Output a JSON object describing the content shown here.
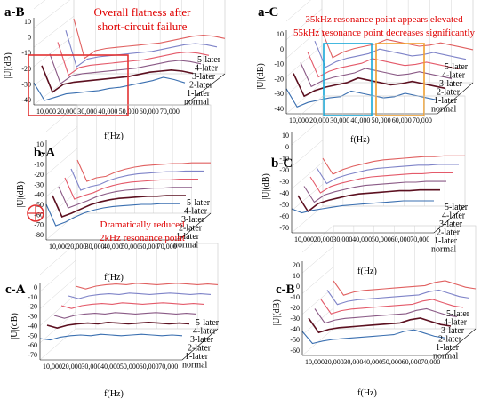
{
  "colors": {
    "normal": "#3a6fb0",
    "1-later": "#5c1020",
    "2-later": "#8a5a86",
    "3-later": "#e45a6a",
    "4-later": "#7e83c8",
    "5-later": "#e06060",
    "grid": "#c8c8c8",
    "highlight_red": "#e23232",
    "highlight_cyan": "#17a8d8",
    "highlight_orange": "#f0a030"
  },
  "chart_data": [
    {
      "id": "a-B",
      "type": "line",
      "label": "a-B",
      "ylabel": "|U|(dB)",
      "xlabel": "f(Hz)",
      "xticks": [
        "10,000",
        "20,000",
        "30,000",
        "40,000",
        "50,000",
        "60,000",
        "70,000"
      ],
      "yticks": [
        "10",
        "0",
        "-10",
        "-20",
        "-30",
        "-40"
      ],
      "ylim": [
        -40,
        10
      ],
      "xlim": [
        0,
        75000
      ],
      "series": [
        {
          "name": "normal",
          "values": [
            -20,
            -36,
            -33,
            -30,
            -29,
            -28,
            -27,
            -25,
            -24,
            -22,
            -20,
            -18,
            -15,
            -17,
            -20
          ]
        },
        {
          "name": "1-later",
          "values": [
            -10,
            -34,
            -27,
            -25,
            -24,
            -23,
            -22,
            -21,
            -20,
            -18,
            -16,
            -15,
            -14,
            -15,
            -17
          ]
        },
        {
          "name": "2-later",
          "values": [
            -5,
            -32,
            -25,
            -23,
            -22,
            -21,
            -20,
            -19,
            -18,
            -16,
            -14,
            -12,
            -11,
            -12,
            -14
          ]
        },
        {
          "name": "3-later",
          "values": [
            0,
            -30,
            -23,
            -21,
            -20,
            -19,
            -18,
            -17,
            -16,
            -14,
            -12,
            -10,
            -9,
            -10,
            -12
          ]
        },
        {
          "name": "4-later",
          "values": [
            5,
            -28,
            -21,
            -19,
            -18,
            -17,
            -16,
            -15,
            -14,
            -12,
            -10,
            -8,
            -7,
            -8,
            -10
          ]
        },
        {
          "name": "5-later",
          "values": [
            10,
            -26,
            -19,
            -17,
            -16,
            -15,
            -14,
            -13,
            -12,
            -10,
            -8,
            -6,
            -5,
            -6,
            -8
          ]
        }
      ],
      "annotations": [
        "Overall flatness after",
        "short-circuit failure"
      ]
    },
    {
      "id": "a-C",
      "type": "line",
      "label": "a-C",
      "ylabel": "|U|(dB)",
      "xlabel": "f(Hz)",
      "xticks": [
        "10,000",
        "20,000",
        "30,000",
        "40,000",
        "50,000",
        "60,000",
        "70,000"
      ],
      "yticks": [
        "10",
        "0",
        "-10",
        "-20",
        "-30",
        "-40"
      ],
      "ylim": [
        -40,
        10
      ],
      "xlim": [
        0,
        75000
      ],
      "series": [
        {
          "name": "normal",
          "values": [
            -18,
            -34,
            -30,
            -28,
            -26,
            -25,
            -20,
            -22,
            -24,
            -26,
            -25,
            -22,
            -24,
            -26,
            -28
          ]
        },
        {
          "name": "1-later",
          "values": [
            -10,
            -30,
            -25,
            -22,
            -20,
            -18,
            -14,
            -16,
            -18,
            -20,
            -19,
            -17,
            -19,
            -21,
            -23
          ]
        },
        {
          "name": "2-later",
          "values": [
            -6,
            -27,
            -22,
            -19,
            -17,
            -15,
            -11,
            -13,
            -15,
            -17,
            -16,
            -14,
            -16,
            -18,
            -20
          ]
        },
        {
          "name": "3-later",
          "values": [
            -2,
            -24,
            -19,
            -16,
            -14,
            -12,
            -8,
            -10,
            -12,
            -14,
            -13,
            -11,
            -13,
            -15,
            -17
          ]
        },
        {
          "name": "4-later",
          "values": [
            2,
            -21,
            -16,
            -13,
            -11,
            -9,
            -5,
            -7,
            -9,
            -11,
            -10,
            -8,
            -10,
            -12,
            -14
          ]
        },
        {
          "name": "5-later",
          "values": [
            6,
            -18,
            -13,
            -10,
            -8,
            -6,
            -2,
            -4,
            -6,
            -8,
            -7,
            -5,
            -7,
            -9,
            -11
          ]
        }
      ],
      "annotations": [
        "35kHz resonance point appears elevated",
        "55kHz resonance point decreases significantly"
      ]
    },
    {
      "id": "b-A",
      "type": "line",
      "label": "b-A",
      "ylabel": "|U|(dB)",
      "xlabel": "f(Hz)",
      "xticks": [
        "10,000",
        "20,000",
        "30,000",
        "40,000",
        "50,000",
        "60,000",
        "70,000"
      ],
      "yticks": [
        "10",
        "0",
        "-10",
        "-20",
        "-30",
        "-40",
        "-50",
        "-60",
        "-70",
        "-80"
      ],
      "ylim": [
        -80,
        10
      ],
      "xlim": [
        0,
        75000
      ],
      "series": [
        {
          "name": "normal",
          "values": [
            -30,
            -60,
            -55,
            -48,
            -42,
            -38,
            -35,
            -33,
            -32,
            -31,
            -30,
            -30,
            -29,
            -29,
            -29
          ]
        },
        {
          "name": "1-later",
          "values": [
            -25,
            -55,
            -50,
            -44,
            -38,
            -34,
            -31,
            -29,
            -28,
            -27,
            -26,
            -26,
            -25,
            -25,
            -25
          ]
        },
        {
          "name": "2-later",
          "values": [
            -20,
            -50,
            -45,
            -40,
            -34,
            -30,
            -27,
            -25,
            -24,
            -23,
            -22,
            -22,
            -21,
            -21,
            -21
          ]
        },
        {
          "name": "3-later",
          "values": [
            -15,
            -45,
            -40,
            -36,
            -30,
            -26,
            -23,
            -21,
            -20,
            -19,
            -18,
            -18,
            -17,
            -17,
            -17
          ]
        },
        {
          "name": "4-later",
          "values": [
            -10,
            -40,
            -35,
            -32,
            -26,
            -22,
            -19,
            -17,
            -16,
            -15,
            -14,
            -14,
            -13,
            -13,
            -13
          ]
        },
        {
          "name": "5-later",
          "values": [
            -5,
            -35,
            -30,
            -28,
            -22,
            -18,
            -15,
            -13,
            -12,
            -11,
            -10,
            -10,
            -9,
            -9,
            -9
          ]
        }
      ],
      "annotations": [
        "Dramatically reduced",
        "2kHz resonance point"
      ]
    },
    {
      "id": "b-C",
      "type": "line",
      "label": "b-C",
      "ylabel": "|U|(dB)",
      "xlabel": "f(Hz)",
      "xticks": [
        "10,000",
        "20,000",
        "30,000",
        "40,000",
        "50,000",
        "60,000",
        "70,000"
      ],
      "yticks": [
        "10",
        "0",
        "-10",
        "-20",
        "-30",
        "-40",
        "-50",
        "-60",
        "-70"
      ],
      "ylim": [
        -70,
        10
      ],
      "xlim": [
        0,
        75000
      ],
      "series": [
        {
          "name": "normal",
          "values": [
            -40,
            -45,
            -42,
            -40,
            -38,
            -36,
            -35,
            -34,
            -33,
            -32,
            -31,
            -30,
            -30,
            -30,
            -30
          ]
        },
        {
          "name": "1-later",
          "values": [
            -30,
            -50,
            -40,
            -36,
            -33,
            -30,
            -28,
            -27,
            -26,
            -25,
            -24,
            -24,
            -23,
            -23,
            -23
          ]
        },
        {
          "name": "2-later",
          "values": [
            -25,
            -45,
            -36,
            -32,
            -29,
            -26,
            -24,
            -23,
            -22,
            -21,
            -20,
            -20,
            -19,
            -19,
            -19
          ]
        },
        {
          "name": "3-later",
          "values": [
            -20,
            -40,
            -32,
            -28,
            -25,
            -22,
            -20,
            -19,
            -18,
            -17,
            -16,
            -16,
            -15,
            -15,
            -15
          ]
        },
        {
          "name": "4-later",
          "values": [
            -15,
            -35,
            -28,
            -24,
            -21,
            -18,
            -16,
            -15,
            -14,
            -13,
            -12,
            -12,
            -11,
            -11,
            -11
          ]
        },
        {
          "name": "5-later",
          "values": [
            -10,
            -30,
            -24,
            -20,
            -17,
            -14,
            -12,
            -11,
            -10,
            -9,
            -8,
            -8,
            -7,
            -7,
            -7
          ]
        }
      ]
    },
    {
      "id": "c-A",
      "type": "line",
      "label": "c-A",
      "ylabel": "|U|(dB)",
      "xlabel": "f(Hz)",
      "xticks": [
        "10,000",
        "20,000",
        "30,000",
        "40,000",
        "50,000",
        "60,000",
        "70,000"
      ],
      "yticks": [
        "0",
        "-10",
        "-20",
        "-30",
        "-40",
        "-50",
        "-60",
        "-70"
      ],
      "ylim": [
        -70,
        0
      ],
      "xlim": [
        0,
        75000
      ],
      "series": [
        {
          "name": "normal",
          "values": [
            -40,
            -42,
            -38,
            -36,
            -35,
            -36,
            -34,
            -35,
            -36,
            -35,
            -34,
            -35,
            -36,
            -35,
            -36
          ]
        },
        {
          "name": "1-later",
          "values": [
            -30,
            -34,
            -30,
            -28,
            -27,
            -28,
            -26,
            -27,
            -28,
            -27,
            -26,
            -27,
            -28,
            -27,
            -28
          ]
        },
        {
          "name": "2-later",
          "values": [
            -25,
            -29,
            -25,
            -23,
            -22,
            -23,
            -21,
            -22,
            -23,
            -22,
            -21,
            -22,
            -23,
            -22,
            -23
          ]
        },
        {
          "name": "3-later",
          "values": [
            -20,
            -24,
            -20,
            -18,
            -17,
            -18,
            -16,
            -17,
            -18,
            -17,
            -16,
            -17,
            -18,
            -17,
            -18
          ]
        },
        {
          "name": "4-later",
          "values": [
            -15,
            -19,
            -15,
            -13,
            -12,
            -13,
            -11,
            -12,
            -13,
            -12,
            -11,
            -12,
            -13,
            -12,
            -13
          ]
        },
        {
          "name": "5-later",
          "values": [
            -10,
            -14,
            -10,
            -8,
            -7,
            -8,
            -6,
            -7,
            -8,
            -7,
            -6,
            -7,
            -8,
            -7,
            -8
          ]
        }
      ]
    },
    {
      "id": "c-B",
      "type": "line",
      "label": "c-B",
      "ylabel": "|U|(dB)",
      "xlabel": "f(Hz)",
      "xticks": [
        "10,000",
        "20,000",
        "30,000",
        "40,000",
        "50,000",
        "60,000",
        "70,000"
      ],
      "yticks": [
        "20",
        "10",
        "0",
        "-10",
        "-20",
        "-30",
        "-40",
        "-50",
        "-60"
      ],
      "ylim": [
        -60,
        20
      ],
      "xlim": [
        0,
        75000
      ],
      "series": [
        {
          "name": "normal",
          "values": [
            -30,
            -45,
            -42,
            -40,
            -39,
            -38,
            -37,
            -36,
            -35,
            -34,
            -30,
            -28,
            -32,
            -36,
            -38
          ]
        },
        {
          "name": "1-later",
          "values": [
            -20,
            -38,
            -34,
            -32,
            -31,
            -30,
            -29,
            -28,
            -27,
            -26,
            -22,
            -20,
            -24,
            -28,
            -30
          ]
        },
        {
          "name": "2-later",
          "values": [
            -15,
            -33,
            -29,
            -27,
            -26,
            -25,
            -24,
            -23,
            -22,
            -21,
            -17,
            -15,
            -19,
            -23,
            -25
          ]
        },
        {
          "name": "3-later",
          "values": [
            -10,
            -28,
            -24,
            -22,
            -21,
            -20,
            -19,
            -18,
            -17,
            -16,
            -12,
            -10,
            -14,
            -18,
            -20
          ]
        },
        {
          "name": "4-later",
          "values": [
            -5,
            -23,
            -19,
            -17,
            -16,
            -15,
            -14,
            -13,
            -12,
            -11,
            -7,
            -5,
            -9,
            -13,
            -15
          ]
        },
        {
          "name": "5-later",
          "values": [
            0,
            -18,
            -14,
            -12,
            -11,
            -10,
            -9,
            -8,
            -7,
            -6,
            -2,
            0,
            -4,
            -8,
            -10
          ]
        }
      ]
    }
  ]
}
